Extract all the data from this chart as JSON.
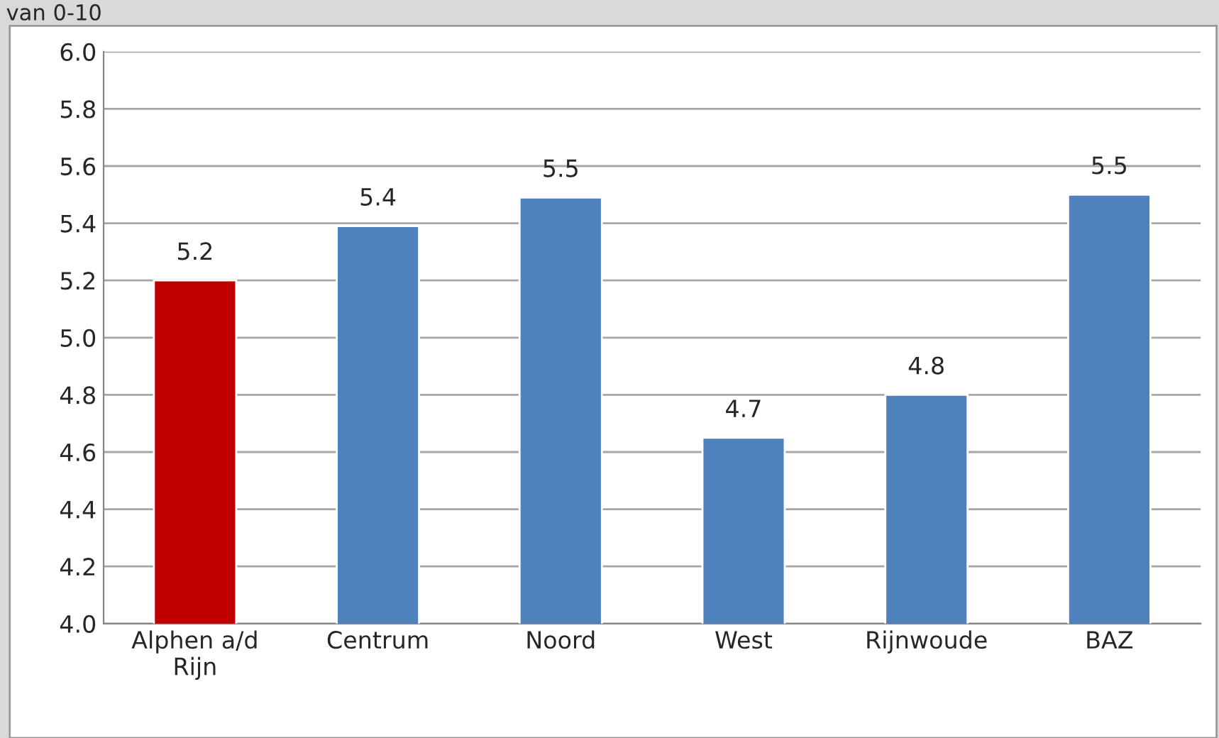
{
  "chart_data": {
    "type": "bar",
    "title": "van 0-10",
    "categories": [
      "Alphen a/d\nRijn",
      "Centrum",
      "Noord",
      "West",
      "Rijnwoude",
      "BAZ"
    ],
    "values": [
      5.2,
      5.39,
      5.49,
      4.65,
      4.8,
      5.5
    ],
    "value_labels": [
      "5.2",
      "5.4",
      "5.5",
      "4.7",
      "4.8",
      "5.5"
    ],
    "colors": [
      "#c00000",
      "#4f81bd",
      "#4f81bd",
      "#4f81bd",
      "#4f81bd",
      "#4f81bd"
    ],
    "ylim": [
      4.0,
      6.0
    ],
    "yticks": [
      {
        "value": 4.0,
        "label": "4.0"
      },
      {
        "value": 4.2,
        "label": "4.2"
      },
      {
        "value": 4.4,
        "label": "4.4"
      },
      {
        "value": 4.6,
        "label": "4.6"
      },
      {
        "value": 4.8,
        "label": "4.8"
      },
      {
        "value": 5.0,
        "label": "5.0"
      },
      {
        "value": 5.2,
        "label": "5.2"
      },
      {
        "value": 5.4,
        "label": "5.4"
      },
      {
        "value": 5.6,
        "label": "5.6"
      },
      {
        "value": 5.8,
        "label": "5.8"
      },
      {
        "value": 6.0,
        "label": "6.0"
      }
    ],
    "grid": "y",
    "legend": false
  }
}
